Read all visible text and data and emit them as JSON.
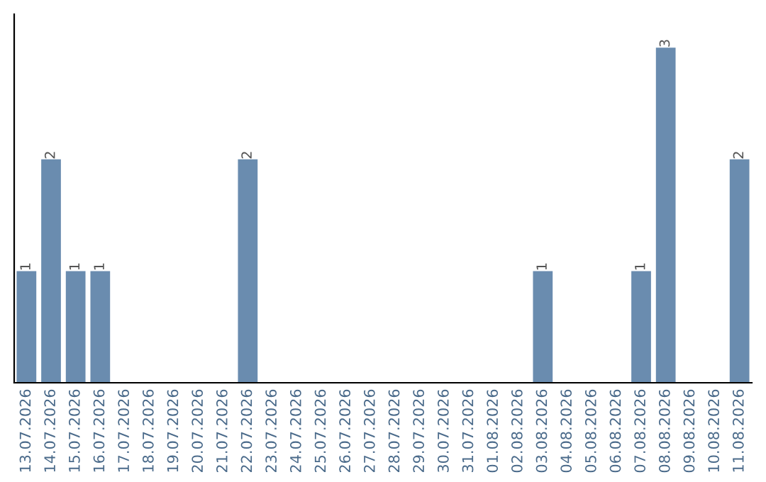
{
  "chart_data": {
    "type": "bar",
    "categories": [
      "13.07.2026",
      "14.07.2026",
      "15.07.2026",
      "16.07.2026",
      "17.07.2026",
      "18.07.2026",
      "19.07.2026",
      "20.07.2026",
      "21.07.2026",
      "22.07.2026",
      "23.07.2026",
      "24.07.2026",
      "25.07.2026",
      "26.07.2026",
      "27.07.2026",
      "28.07.2026",
      "29.07.2026",
      "30.07.2026",
      "31.07.2026",
      "01.08.2026",
      "02.08.2026",
      "03.08.2026",
      "04.08.2026",
      "05.08.2026",
      "06.08.2026",
      "07.08.2026",
      "08.08.2026",
      "09.08.2026",
      "10.08.2026",
      "11.08.2026"
    ],
    "values": [
      1,
      2,
      1,
      1,
      0,
      0,
      0,
      0,
      0,
      2,
      0,
      0,
      0,
      0,
      0,
      0,
      0,
      0,
      0,
      0,
      0,
      1,
      0,
      0,
      0,
      1,
      3,
      0,
      0,
      2
    ],
    "value_labels": [
      "1",
      "2",
      "1",
      "1",
      null,
      null,
      null,
      null,
      null,
      "2",
      null,
      null,
      null,
      null,
      null,
      null,
      null,
      null,
      null,
      null,
      null,
      "1",
      null,
      null,
      null,
      "1",
      "3",
      null,
      null,
      "2"
    ],
    "color": "#6a8caf",
    "grid": false,
    "legend": false
  }
}
